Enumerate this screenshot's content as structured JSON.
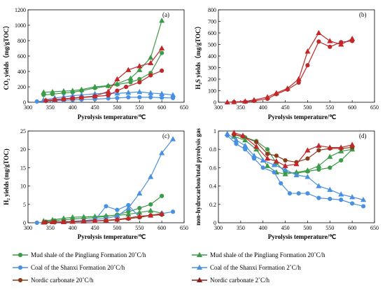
{
  "legend": {
    "items": [
      {
        "label": "Mud shale of the Pingliang Formation 20˚C/h",
        "color": "#3b9b49",
        "marker": "circle"
      },
      {
        "label": "Mud shale of the Pingliang Formation 20˚C/h",
        "color": "#3b9b49",
        "marker": "triangle"
      },
      {
        "label": "Coal of the Shanxi Formation 20˚C/h",
        "color": "#4a90e2",
        "marker": "circle"
      },
      {
        "label": "Coal of the Shanxi Formation 2˚C/h",
        "color": "#4a90e2",
        "marker": "triangle"
      },
      {
        "label": "Nordic carbonate 20˚C/h",
        "color": "#8b3a1a",
        "marker": "circle"
      },
      {
        "label": "Nordic carbonate 2˚C/h",
        "color": "#8b1a1a",
        "marker": "triangle"
      }
    ]
  },
  "chart_data": [
    {
      "type": "line",
      "tag": "(a)",
      "xlabel": "Pyrolysis temperature/℃",
      "ylabel": "CO₂ yields（mg/gTOC）",
      "xlim": [
        300,
        650
      ],
      "ylim": [
        0,
        1200
      ],
      "xticks": [
        300,
        350,
        400,
        450,
        500,
        550,
        600,
        650
      ],
      "yticks": [
        0,
        200,
        400,
        600,
        800,
        1000,
        1200
      ],
      "series": [
        {
          "legend_index": 0,
          "color": "#3b9b49",
          "marker": "circle",
          "x": [
            335,
            355,
            380,
            400,
            420,
            450,
            480,
            500,
            530,
            550,
            575,
            600
          ],
          "y": [
            95,
            105,
            120,
            130,
            150,
            185,
            210,
            230,
            260,
            300,
            380,
            640
          ]
        },
        {
          "legend_index": 1,
          "color": "#3b9b49",
          "marker": "triangle",
          "x": [
            335,
            355,
            380,
            400,
            420,
            450,
            480,
            500,
            530,
            550,
            575,
            600
          ],
          "y": [
            130,
            135,
            145,
            150,
            165,
            200,
            215,
            240,
            310,
            420,
            580,
            1060
          ]
        },
        {
          "legend_index": 2,
          "color": "#4a90e2",
          "marker": "circle",
          "x": [
            320,
            340,
            360,
            380,
            400,
            420,
            450,
            480,
            500,
            525,
            550,
            575,
            600,
            625
          ],
          "y": [
            10,
            15,
            20,
            25,
            30,
            35,
            40,
            50,
            55,
            65,
            65,
            65,
            60,
            55
          ]
        },
        {
          "legend_index": 3,
          "color": "#4a90e2",
          "marker": "triangle",
          "x": [
            335,
            360,
            380,
            400,
            420,
            450,
            480,
            500,
            525,
            550,
            575,
            600,
            625
          ],
          "y": [
            30,
            55,
            70,
            85,
            95,
            110,
            120,
            115,
            125,
            135,
            120,
            110,
            95
          ]
        },
        {
          "legend_index": 4,
          "color": "#c0282a",
          "marker": "circle",
          "x": [
            340,
            360,
            380,
            400,
            420,
            450,
            480,
            500,
            520,
            550,
            575,
            600
          ],
          "y": [
            20,
            30,
            40,
            50,
            60,
            75,
            90,
            150,
            200,
            260,
            350,
            410
          ]
        },
        {
          "legend_index": 5,
          "color": "#c0282a",
          "marker": "triangle",
          "x": [
            340,
            360,
            380,
            400,
            420,
            450,
            480,
            500,
            525,
            550,
            575,
            600
          ],
          "y": [
            25,
            35,
            45,
            55,
            65,
            80,
            140,
            300,
            420,
            470,
            510,
            700
          ]
        }
      ]
    },
    {
      "type": "line",
      "tag": "(b)",
      "xlabel": "Pyrolysis temperature/℃",
      "ylabel": "H₂S yields（mg/gTOC）",
      "xlim": [
        300,
        650
      ],
      "ylim": [
        0,
        800
      ],
      "xticks": [
        300,
        350,
        400,
        450,
        500,
        550,
        600,
        650
      ],
      "yticks": [
        0,
        100,
        200,
        300,
        400,
        500,
        600,
        700,
        800
      ],
      "series": [
        {
          "legend_index": 4,
          "color": "#c0282a",
          "marker": "circle",
          "x": [
            335,
            360,
            380,
            410,
            430,
            455,
            480,
            500,
            525,
            550,
            575,
            600
          ],
          "y": [
            2,
            5,
            12,
            30,
            70,
            110,
            170,
            320,
            525,
            480,
            520,
            530
          ]
        },
        {
          "legend_index": 5,
          "color": "#c0282a",
          "marker": "triangle",
          "x": [
            320,
            335,
            360,
            380,
            410,
            430,
            455,
            480,
            500,
            525,
            550,
            575,
            600
          ],
          "y": [
            0,
            3,
            8,
            20,
            45,
            80,
            120,
            200,
            440,
            600,
            530,
            500,
            550
          ]
        }
      ]
    },
    {
      "type": "line",
      "tag": "(c)",
      "xlabel": "Pyrolysis temperature/℃",
      "ylabel": "H₂ yields (mg/gTOC)",
      "xlim": [
        300,
        650
      ],
      "ylim": [
        0,
        25
      ],
      "xticks": [
        300,
        350,
        400,
        450,
        500,
        550,
        600,
        650
      ],
      "yticks": [
        0,
        5,
        10,
        15,
        20,
        25
      ],
      "series": [
        {
          "legend_index": 0,
          "color": "#3b9b49",
          "marker": "circle",
          "x": [
            340,
            360,
            380,
            400,
            425,
            450,
            475,
            500,
            525,
            550,
            575,
            600
          ],
          "y": [
            0.3,
            0.6,
            0.8,
            1.0,
            1.2,
            1.4,
            1.7,
            2.2,
            3.0,
            4.0,
            5.0,
            7.3
          ]
        },
        {
          "legend_index": 1,
          "color": "#3b9b49",
          "marker": "triangle",
          "x": [
            335,
            355,
            380,
            400,
            425,
            450,
            475,
            500,
            525,
            550,
            575,
            600
          ],
          "y": [
            0.5,
            0.8,
            1.2,
            1.5,
            1.6,
            1.7,
            1.9,
            2.0,
            2.3,
            2.8,
            3.3,
            2.6
          ]
        },
        {
          "legend_index": 2,
          "color": "#4a90e2",
          "marker": "circle",
          "x": [
            320,
            340,
            360,
            380,
            400,
            425,
            450,
            475,
            500,
            525,
            550,
            575,
            600,
            625
          ],
          "y": [
            0,
            0.1,
            0.1,
            0.2,
            0.3,
            0.5,
            0.7,
            4.5,
            3.5,
            4.8,
            1.5,
            2.0,
            2.5,
            3.0
          ]
        },
        {
          "legend_index": 3,
          "color": "#4a90e2",
          "marker": "triangle",
          "x": [
            335,
            355,
            380,
            400,
            425,
            450,
            475,
            500,
            525,
            550,
            575,
            600,
            625
          ],
          "y": [
            0.1,
            0.2,
            0.3,
            0.4,
            0.6,
            0.9,
            1.2,
            1.8,
            4.0,
            8.0,
            12.5,
            19.0,
            22.8
          ]
        },
        {
          "legend_index": 4,
          "color": "#8b3a1a",
          "marker": "circle",
          "x": [
            340,
            360,
            380,
            400,
            425,
            450,
            475,
            500,
            525,
            550,
            575,
            600
          ],
          "y": [
            0.1,
            0.2,
            0.3,
            0.3,
            0.4,
            0.5,
            0.6,
            0.8,
            1.1,
            1.5,
            2.0,
            2.2
          ]
        },
        {
          "legend_index": 5,
          "color": "#c0282a",
          "marker": "triangle",
          "x": [
            335,
            355,
            380,
            400,
            425,
            450,
            475,
            500,
            525,
            550,
            575,
            600
          ],
          "y": [
            0.1,
            0.2,
            0.2,
            0.3,
            0.4,
            0.5,
            0.7,
            0.9,
            1.3,
            1.8,
            2.0,
            2.5
          ]
        }
      ]
    },
    {
      "type": "line",
      "tag": "(d)",
      "xlabel": "Pyrolysis temperature/℃",
      "ylabel": "non-hydrocarbon/total pyrolysis gas",
      "xlim": [
        300,
        650
      ],
      "ylim": [
        0,
        1.0
      ],
      "xticks": [
        300,
        350,
        400,
        450,
        500,
        550,
        600,
        650
      ],
      "yticks": [
        0,
        0.2,
        0.4,
        0.6,
        0.8,
        1.0
      ],
      "series": [
        {
          "legend_index": 0,
          "color": "#3b9b49",
          "marker": "circle",
          "x": [
            335,
            360,
            385,
            410,
            430,
            450,
            475,
            500,
            525,
            550,
            575,
            600
          ],
          "y": [
            0.96,
            0.93,
            0.89,
            0.8,
            0.65,
            0.55,
            0.54,
            0.56,
            0.58,
            0.6,
            0.68,
            0.8
          ]
        },
        {
          "legend_index": 1,
          "color": "#3b9b49",
          "marker": "triangle",
          "x": [
            335,
            360,
            385,
            410,
            430,
            450,
            475,
            500,
            525,
            550,
            575,
            600
          ],
          "y": [
            0.94,
            0.9,
            0.8,
            0.62,
            0.55,
            0.53,
            0.55,
            0.57,
            0.62,
            0.72,
            0.78,
            0.8
          ]
        },
        {
          "legend_index": 2,
          "color": "#4a90e2",
          "marker": "circle",
          "x": [
            320,
            340,
            360,
            380,
            400,
            425,
            440,
            460,
            480,
            500,
            525,
            550,
            575,
            600,
            625
          ],
          "y": [
            0.95,
            0.86,
            0.8,
            0.7,
            0.6,
            0.55,
            0.43,
            0.32,
            0.32,
            0.32,
            0.27,
            0.26,
            0.25,
            0.21,
            0.18
          ]
        },
        {
          "legend_index": 3,
          "color": "#4a90e2",
          "marker": "triangle",
          "x": [
            320,
            340,
            360,
            380,
            400,
            425,
            450,
            475,
            500,
            525,
            550,
            575,
            600,
            625
          ],
          "y": [
            0.97,
            0.9,
            0.84,
            0.73,
            0.68,
            0.63,
            0.58,
            0.52,
            0.5,
            0.4,
            0.36,
            0.31,
            0.28,
            0.25
          ]
        },
        {
          "legend_index": 4,
          "color": "#8b3a1a",
          "marker": "circle",
          "x": [
            335,
            355,
            385,
            410,
            430,
            450,
            475,
            500,
            525,
            550,
            575,
            600
          ],
          "y": [
            0.96,
            0.94,
            0.88,
            0.75,
            0.73,
            0.68,
            0.66,
            0.7,
            0.79,
            0.81,
            0.81,
            0.82
          ]
        },
        {
          "legend_index": 5,
          "color": "#c0282a",
          "marker": "triangle",
          "x": [
            335,
            355,
            385,
            410,
            430,
            450,
            475,
            500,
            525,
            550,
            575,
            600
          ],
          "y": [
            0.98,
            0.95,
            0.83,
            0.7,
            0.67,
            0.62,
            0.64,
            0.79,
            0.84,
            0.82,
            0.82,
            0.85
          ]
        }
      ]
    }
  ]
}
